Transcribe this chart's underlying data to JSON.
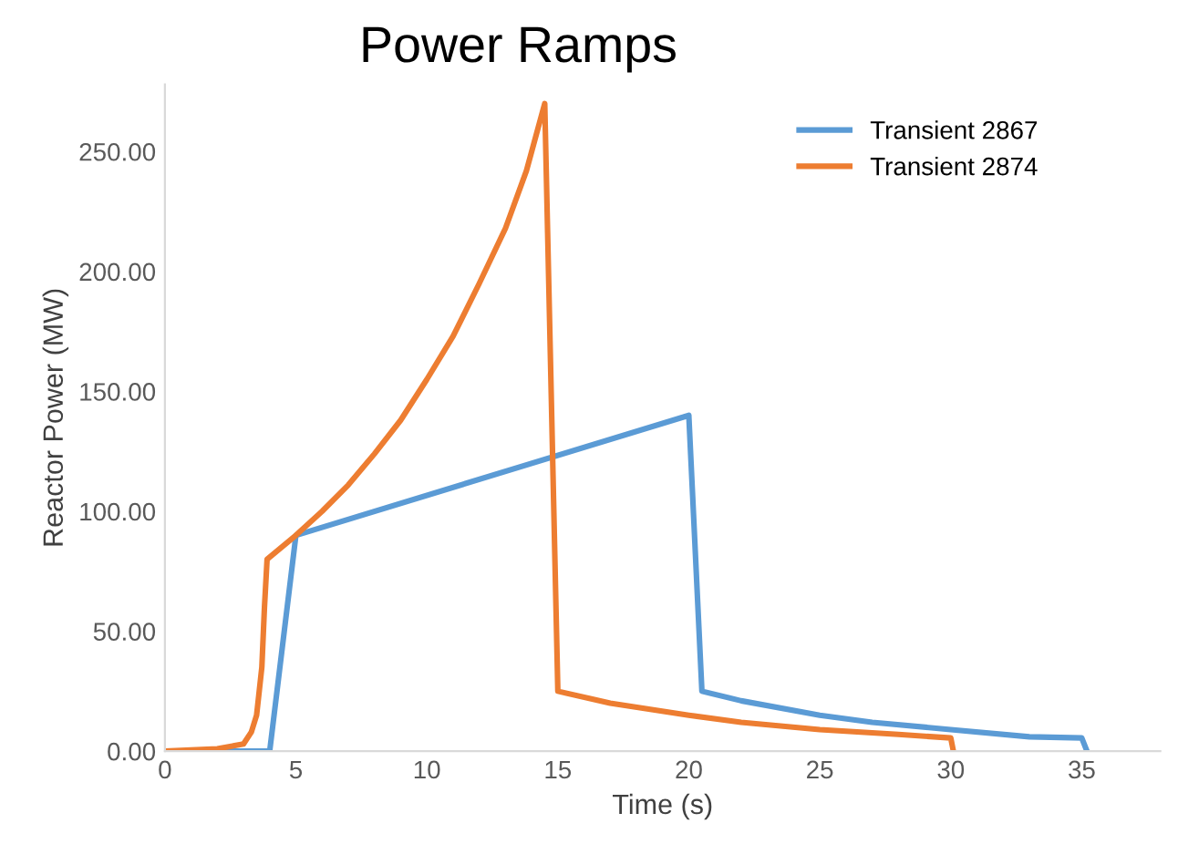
{
  "chart_data": {
    "type": "line",
    "title": "Power Ramps",
    "xlabel": "Time (s)",
    "ylabel": "Reactor Power (MW)",
    "xlim": [
      0,
      38
    ],
    "xticks": [
      0,
      5,
      10,
      15,
      20,
      25,
      30,
      35
    ],
    "ylim": [
      0,
      278
    ],
    "yticks": [
      {
        "value": 0,
        "label": "0.00"
      },
      {
        "value": 50,
        "label": "50.00"
      },
      {
        "value": 100,
        "label": "100.00"
      },
      {
        "value": 150,
        "label": "150.00"
      },
      {
        "value": 200,
        "label": "200.00"
      },
      {
        "value": 250,
        "label": "250.00"
      }
    ],
    "grid": false,
    "legend": "top right",
    "marker": "none",
    "line_style": "solid",
    "series": [
      {
        "name": "Transient 2867",
        "color": "#5b9bd5",
        "x": [
          0,
          4,
          5,
          20,
          20.5,
          22,
          25,
          27,
          30,
          33,
          35,
          35.2
        ],
        "values": [
          0,
          0,
          90,
          140,
          25,
          21,
          15,
          12,
          9,
          6,
          5.5,
          0
        ]
      },
      {
        "name": "Transient 2874",
        "color": "#ed7d31",
        "x": [
          0,
          2,
          3,
          3.3,
          3.5,
          3.7,
          3.8,
          3.9,
          5,
          6,
          7,
          8,
          9,
          10,
          11,
          12,
          13,
          13.8,
          14.5,
          15,
          17,
          20,
          22,
          25,
          28,
          30,
          30.1
        ],
        "values": [
          0,
          1,
          3,
          8,
          15,
          35,
          60,
          80,
          90,
          100,
          111,
          124,
          138,
          155,
          173,
          195,
          218,
          242,
          270,
          25,
          20,
          15,
          12,
          9,
          7,
          5.5,
          0
        ]
      }
    ]
  }
}
